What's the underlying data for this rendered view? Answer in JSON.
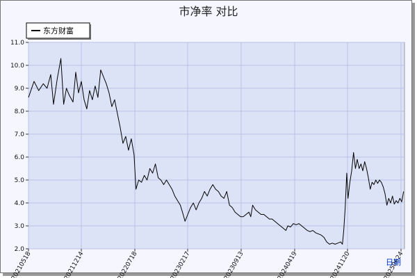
{
  "chart_data": {
    "type": "line",
    "title": "市净率  对比",
    "xlabel": "日期",
    "ylabel": "",
    "ylim": [
      2.0,
      11.0
    ],
    "yticks": [
      "2.0",
      "3.0",
      "4.0",
      "5.0",
      "6.0",
      "7.0",
      "8.0",
      "9.0",
      "10.0",
      "11.0"
    ],
    "xticks": [
      "20210518",
      "20211214",
      "20220718",
      "20230217",
      "20230913",
      "20240419",
      "20241120",
      "20250624"
    ],
    "grid": true,
    "legend": "top-left",
    "series": [
      {
        "name": "东方财富",
        "color": "#000000",
        "points": [
          [
            0,
            8.6
          ],
          [
            0.3,
            9.3
          ],
          [
            0.55,
            8.9
          ],
          [
            0.8,
            9.2
          ],
          [
            1.0,
            9.0
          ],
          [
            1.2,
            9.6
          ],
          [
            1.35,
            8.3
          ],
          [
            1.55,
            9.4
          ],
          [
            1.75,
            10.3
          ],
          [
            1.9,
            8.3
          ],
          [
            2.05,
            9.0
          ],
          [
            2.2,
            8.7
          ],
          [
            2.4,
            8.4
          ],
          [
            2.55,
            9.7
          ],
          [
            2.7,
            8.8
          ],
          [
            2.85,
            9.3
          ],
          [
            3.0,
            8.5
          ],
          [
            3.15,
            8.1
          ],
          [
            3.3,
            8.9
          ],
          [
            3.45,
            8.5
          ],
          [
            3.6,
            9.1
          ],
          [
            3.75,
            8.6
          ],
          [
            3.9,
            9.8
          ],
          [
            4.05,
            9.5
          ],
          [
            4.2,
            9.2
          ],
          [
            4.35,
            8.8
          ],
          [
            4.5,
            8.2
          ],
          [
            4.65,
            8.5
          ],
          [
            4.8,
            7.9
          ],
          [
            4.95,
            7.3
          ],
          [
            5.1,
            6.6
          ],
          [
            5.25,
            6.9
          ],
          [
            5.4,
            6.3
          ],
          [
            5.55,
            6.8
          ],
          [
            5.7,
            6.1
          ],
          [
            5.8,
            4.6
          ],
          [
            5.95,
            5.0
          ],
          [
            6.1,
            4.9
          ],
          [
            6.25,
            5.2
          ],
          [
            6.4,
            5.0
          ],
          [
            6.55,
            5.5
          ],
          [
            6.7,
            5.3
          ],
          [
            6.85,
            5.7
          ],
          [
            7.0,
            5.1
          ],
          [
            7.15,
            5.0
          ],
          [
            7.3,
            4.8
          ],
          [
            7.45,
            5.0
          ],
          [
            7.6,
            4.8
          ],
          [
            7.75,
            4.6
          ],
          [
            7.9,
            4.3
          ],
          [
            8.05,
            4.1
          ],
          [
            8.2,
            3.9
          ],
          [
            8.35,
            3.5
          ],
          [
            8.45,
            3.2
          ],
          [
            8.6,
            3.5
          ],
          [
            8.75,
            3.8
          ],
          [
            8.9,
            4.0
          ],
          [
            9.05,
            3.7
          ],
          [
            9.2,
            4.0
          ],
          [
            9.35,
            4.2
          ],
          [
            9.5,
            4.5
          ],
          [
            9.65,
            4.3
          ],
          [
            9.8,
            4.6
          ],
          [
            9.95,
            4.8
          ],
          [
            10.1,
            4.6
          ],
          [
            10.25,
            4.5
          ],
          [
            10.4,
            4.3
          ],
          [
            10.55,
            4.2
          ],
          [
            10.7,
            4.5
          ],
          [
            10.85,
            3.9
          ],
          [
            11.0,
            3.8
          ],
          [
            11.15,
            3.6
          ],
          [
            11.3,
            3.5
          ],
          [
            11.45,
            3.4
          ],
          [
            11.6,
            3.4
          ],
          [
            11.75,
            3.5
          ],
          [
            11.9,
            3.6
          ],
          [
            12.0,
            3.4
          ],
          [
            12.1,
            3.9
          ],
          [
            12.25,
            3.7
          ],
          [
            12.4,
            3.6
          ],
          [
            12.55,
            3.5
          ],
          [
            12.7,
            3.5
          ],
          [
            12.85,
            3.4
          ],
          [
            13.0,
            3.3
          ],
          [
            13.15,
            3.3
          ],
          [
            13.3,
            3.2
          ],
          [
            13.45,
            3.1
          ],
          [
            13.6,
            3.0
          ],
          [
            13.75,
            2.9
          ],
          [
            13.9,
            2.8
          ],
          [
            14.0,
            3.0
          ],
          [
            14.15,
            2.95
          ],
          [
            14.3,
            3.1
          ],
          [
            14.45,
            3.05
          ],
          [
            14.6,
            3.1
          ],
          [
            14.75,
            3.0
          ],
          [
            14.9,
            2.9
          ],
          [
            15.05,
            2.8
          ],
          [
            15.2,
            2.75
          ],
          [
            15.35,
            2.8
          ],
          [
            15.5,
            2.7
          ],
          [
            15.65,
            2.65
          ],
          [
            15.8,
            2.6
          ],
          [
            15.95,
            2.5
          ],
          [
            16.1,
            2.3
          ],
          [
            16.25,
            2.2
          ],
          [
            16.4,
            2.25
          ],
          [
            16.55,
            2.2
          ],
          [
            16.7,
            2.25
          ],
          [
            16.85,
            2.3
          ],
          [
            16.95,
            2.2
          ],
          [
            17.02,
            2.8
          ],
          [
            17.1,
            3.8
          ],
          [
            17.18,
            5.3
          ],
          [
            17.25,
            4.2
          ],
          [
            17.35,
            4.9
          ],
          [
            17.45,
            5.4
          ],
          [
            17.55,
            6.2
          ],
          [
            17.65,
            5.5
          ],
          [
            17.75,
            5.9
          ],
          [
            17.85,
            5.5
          ],
          [
            17.95,
            5.7
          ],
          [
            18.05,
            5.4
          ],
          [
            18.15,
            5.8
          ],
          [
            18.25,
            5.5
          ],
          [
            18.35,
            5.1
          ],
          [
            18.45,
            4.6
          ],
          [
            18.55,
            4.9
          ],
          [
            18.65,
            4.8
          ],
          [
            18.75,
            5.0
          ],
          [
            18.85,
            4.85
          ],
          [
            18.95,
            5.0
          ],
          [
            19.05,
            4.9
          ],
          [
            19.15,
            4.7
          ],
          [
            19.25,
            4.4
          ],
          [
            19.35,
            3.9
          ],
          [
            19.45,
            4.2
          ],
          [
            19.55,
            4.0
          ],
          [
            19.65,
            4.3
          ],
          [
            19.75,
            3.95
          ],
          [
            19.85,
            4.1
          ],
          [
            19.95,
            4.0
          ],
          [
            20.05,
            4.2
          ],
          [
            20.15,
            4.05
          ],
          [
            20.25,
            4.5
          ]
        ]
      }
    ],
    "x_domain": [
      0,
      20.3
    ]
  }
}
